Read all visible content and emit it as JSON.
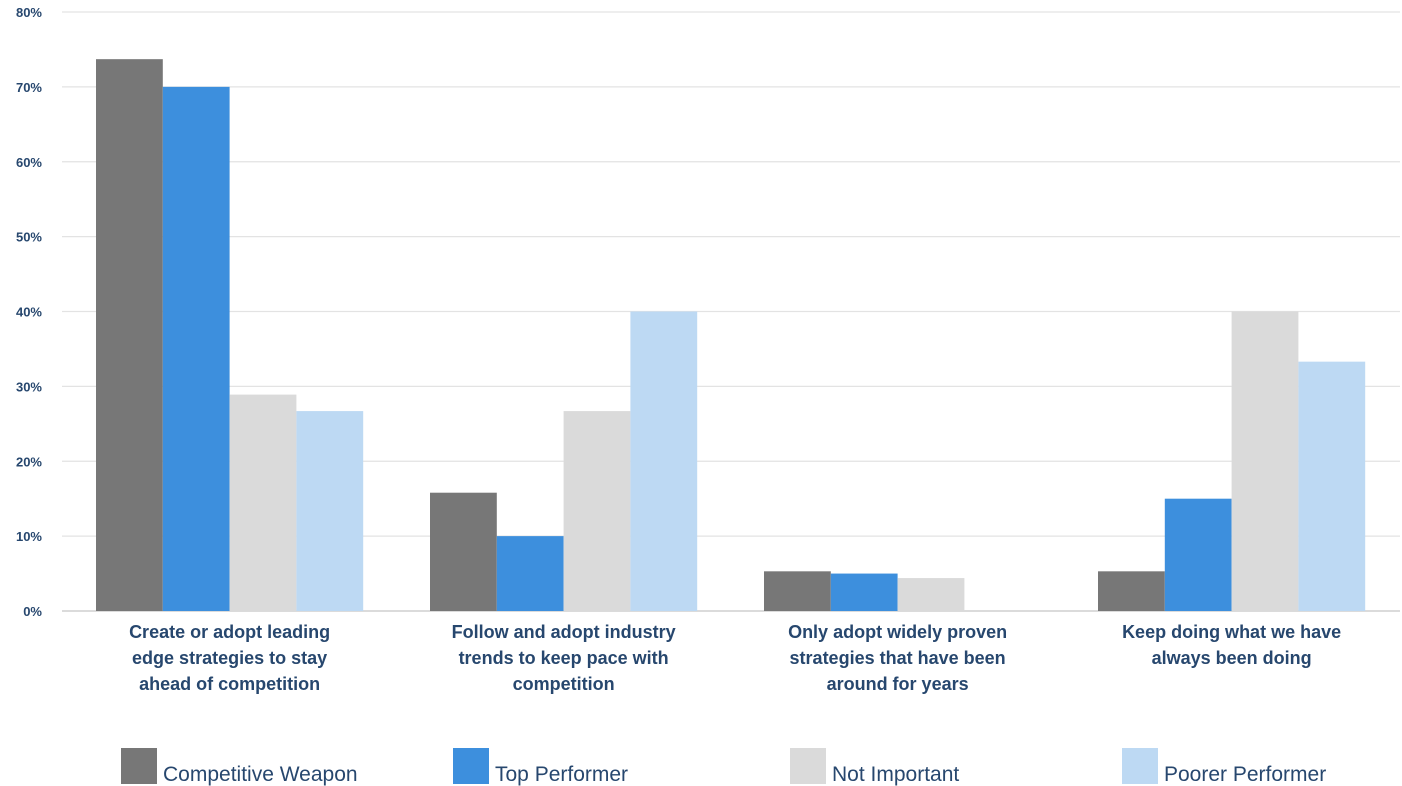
{
  "chart_data": {
    "type": "bar",
    "categories": [
      [
        "Create or adopt leading",
        "edge strategies to stay",
        "ahead of competition"
      ],
      [
        "Follow and adopt industry",
        "trends to keep pace with",
        "competition"
      ],
      [
        "Only adopt widely proven",
        "strategies that have been",
        "around for years"
      ],
      [
        "Keep doing what we have",
        "always been doing"
      ]
    ],
    "series": [
      {
        "name": "Competitive Weapon",
        "color": "#777777",
        "values": [
          73.7,
          15.8,
          5.3,
          5.3
        ]
      },
      {
        "name": "Top Performer",
        "color": "#3d8fdd",
        "values": [
          70,
          10,
          5,
          15
        ]
      },
      {
        "name": "Not Important",
        "color": "#dadada",
        "values": [
          28.9,
          26.7,
          4.4,
          40
        ]
      },
      {
        "name": "Poorer Performer",
        "color": "#bdd9f3",
        "values": [
          26.7,
          40,
          0,
          33.3
        ]
      }
    ],
    "ylim": [
      0,
      80
    ],
    "yticks": [
      "0%",
      "10%",
      "20%",
      "30%",
      "40%",
      "50%",
      "60%",
      "70%",
      "80%"
    ],
    "grid": true,
    "legend_position": "bottom",
    "axis_text_color": "#27476e",
    "gridline_color": "#e3e3e3"
  }
}
